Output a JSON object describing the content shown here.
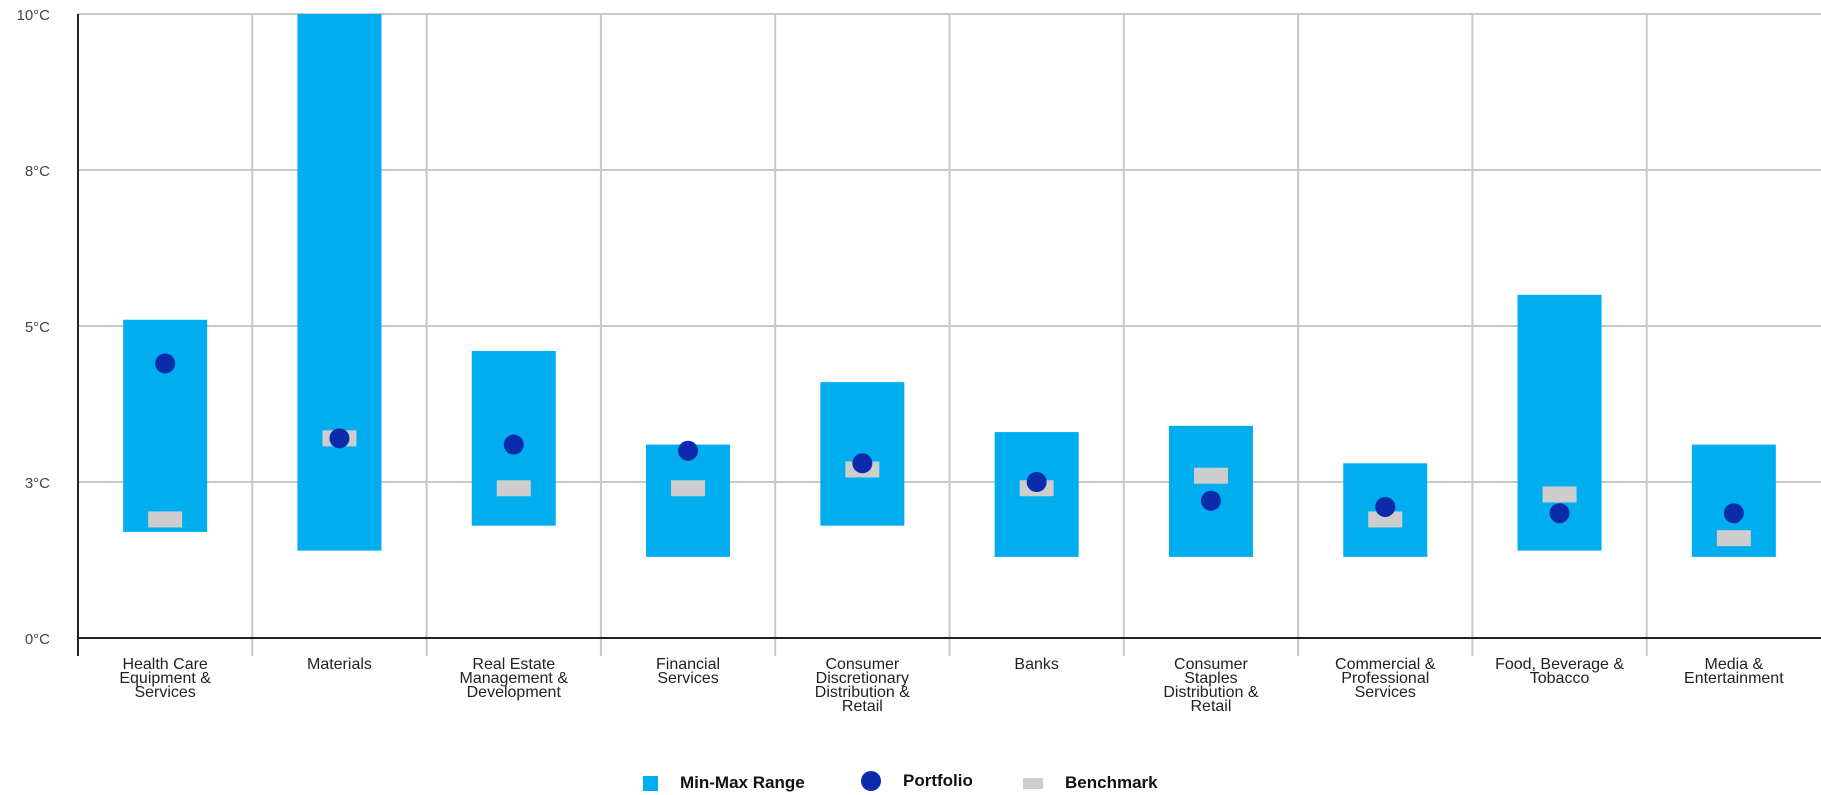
{
  "chart_data": {
    "type": "range-dot",
    "title": "",
    "xlabel": "",
    "ylabel": "",
    "ylim": [
      0,
      10
    ],
    "y_ticks": [
      "0°C",
      "3°C",
      "5°C",
      "8°C",
      "10°C"
    ],
    "y_tick_values": [
      0,
      2.5,
      5,
      7.5,
      10
    ],
    "grid": true,
    "legend_position": "bottom",
    "categories": [
      "Health Care Equipment & Services",
      "Materials",
      "Real Estate Management & Development",
      "Financial Services",
      "Consumer Discretionary Distribution & Retail",
      "Banks",
      "Consumer Staples Distribution & Retail",
      "Commercial & Professional Services",
      "Food, Beverage & Tobacco",
      "Media & Entertainment"
    ],
    "category_label_lines": [
      [
        "Health Care",
        "Equipment &",
        "Services"
      ],
      [
        "Materials"
      ],
      [
        "Real Estate",
        "Management &",
        "Development"
      ],
      [
        "Financial",
        "Services"
      ],
      [
        "Consumer",
        "Discretionary",
        "Distribution &",
        "Retail"
      ],
      [
        "Banks"
      ],
      [
        "Consumer",
        "Staples",
        "Distribution &",
        "Retail"
      ],
      [
        "Commercial &",
        "Professional",
        "Services"
      ],
      [
        "Food, Beverage &",
        "Tobacco"
      ],
      [
        "Media &",
        "Entertainment"
      ]
    ],
    "series": [
      {
        "name": "Min-Max Range",
        "type": "range",
        "min": [
          1.7,
          1.4,
          1.8,
          1.3,
          1.8,
          1.3,
          1.3,
          1.3,
          1.4,
          1.3
        ],
        "max": [
          5.1,
          10.0,
          4.6,
          3.1,
          4.1,
          3.3,
          3.4,
          2.8,
          5.5,
          3.1
        ]
      },
      {
        "name": "Portfolio",
        "type": "scatter",
        "values": [
          4.4,
          3.2,
          3.1,
          3.0,
          2.8,
          2.5,
          2.2,
          2.1,
          2.0,
          2.0
        ]
      },
      {
        "name": "Benchmark",
        "type": "marker",
        "values": [
          1.9,
          3.2,
          2.4,
          2.4,
          2.7,
          2.4,
          2.6,
          1.9,
          2.3,
          1.6
        ]
      }
    ],
    "colors": {
      "range": "#00adef",
      "portfolio": "#0a2bab",
      "benchmark": "#cdcdcd",
      "grid": "#c8c8c8",
      "axis": "#222222"
    }
  },
  "legend": {
    "range_label": "Min-Max Range",
    "portfolio_label": "Portfolio",
    "benchmark_label": "Benchmark"
  }
}
